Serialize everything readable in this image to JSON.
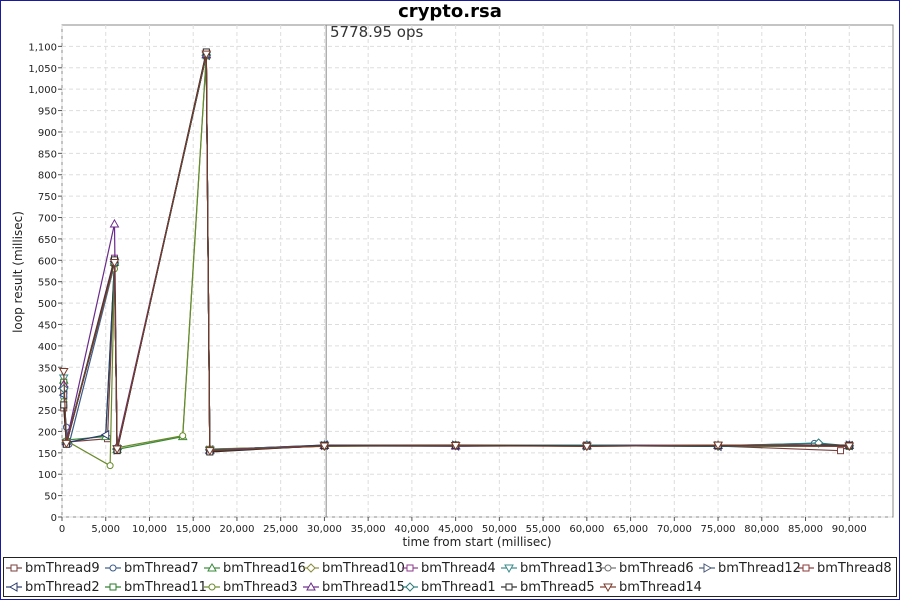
{
  "chart_data": {
    "type": "line",
    "title": "crypto.rsa",
    "annotation": "5778.95 ops",
    "xlabel": "time from start (millisec)",
    "ylabel": "loop result (millisec)",
    "xlim": [
      0,
      95000
    ],
    "ylim": [
      0,
      1150
    ],
    "x_ticks": [
      "0",
      "5,000",
      "10,000",
      "15,000",
      "20,000",
      "25,000",
      "30,000",
      "35,000",
      "40,000",
      "45,000",
      "50,000",
      "55,000",
      "60,000",
      "65,000",
      "70,000",
      "75,000",
      "80,000",
      "85,000",
      "90,000"
    ],
    "x_tick_values": [
      0,
      5000,
      10000,
      15000,
      20000,
      25000,
      30000,
      35000,
      40000,
      45000,
      50000,
      55000,
      60000,
      65000,
      70000,
      75000,
      80000,
      85000,
      90000
    ],
    "y_ticks": [
      "0",
      "50",
      "100",
      "150",
      "200",
      "250",
      "300",
      "350",
      "400",
      "450",
      "500",
      "550",
      "600",
      "650",
      "700",
      "750",
      "800",
      "850",
      "900",
      "950",
      "1,000",
      "1,050",
      "1,100"
    ],
    "y_tick_values": [
      0,
      50,
      100,
      150,
      200,
      250,
      300,
      350,
      400,
      450,
      500,
      550,
      600,
      650,
      700,
      750,
      800,
      850,
      900,
      950,
      1000,
      1050,
      1100
    ],
    "vertical_marker_x": 30200,
    "grid": true,
    "legend_position": "bottom",
    "series": [
      {
        "name": "bmThread9",
        "marker": "square",
        "color": "#7a4040",
        "points": [
          [
            200,
            255
          ],
          [
            500,
            175
          ],
          [
            5200,
            183
          ],
          [
            6000,
            600
          ],
          [
            6300,
            155
          ],
          [
            16500,
            1085
          ],
          [
            16900,
            155
          ],
          [
            30000,
            166
          ],
          [
            45000,
            168
          ],
          [
            60000,
            167
          ],
          [
            75000,
            166
          ],
          [
            89000,
            155
          ],
          [
            90000,
            166
          ]
        ]
      },
      {
        "name": "bmThread7",
        "marker": "circle",
        "color": "#3a5a8a",
        "points": [
          [
            200,
            280
          ],
          [
            500,
            210
          ],
          [
            800,
            170
          ],
          [
            6000,
            590
          ],
          [
            6300,
            160
          ],
          [
            16500,
            1080
          ],
          [
            16900,
            155
          ],
          [
            30000,
            167
          ],
          [
            45000,
            166
          ],
          [
            60000,
            168
          ],
          [
            75000,
            167
          ],
          [
            86000,
            172
          ],
          [
            90000,
            166
          ]
        ]
      },
      {
        "name": "bmThread16",
        "marker": "triangle-up",
        "color": "#3a8a3a",
        "points": [
          [
            200,
            320
          ],
          [
            500,
            180
          ],
          [
            5000,
            188
          ],
          [
            6000,
            595
          ],
          [
            6300,
            158
          ],
          [
            13800,
            188
          ],
          [
            16500,
            1080
          ],
          [
            16900,
            155
          ],
          [
            30000,
            168
          ],
          [
            45000,
            167
          ],
          [
            60000,
            166
          ],
          [
            75000,
            168
          ],
          [
            90000,
            167
          ]
        ]
      },
      {
        "name": "bmThread10",
        "marker": "diamond",
        "color": "#8a8a3a",
        "points": [
          [
            200,
            300
          ],
          [
            500,
            175
          ],
          [
            6000,
            590
          ],
          [
            6300,
            160
          ],
          [
            16500,
            1078
          ],
          [
            16900,
            158
          ],
          [
            30000,
            166
          ],
          [
            45000,
            168
          ],
          [
            60000,
            167
          ],
          [
            75000,
            165
          ],
          [
            90000,
            166
          ]
        ]
      },
      {
        "name": "bmThread4",
        "marker": "square",
        "color": "#8a3a8a",
        "points": [
          [
            200,
            310
          ],
          [
            500,
            172
          ],
          [
            6000,
            605
          ],
          [
            6300,
            158
          ],
          [
            16500,
            1082
          ],
          [
            16900,
            156
          ],
          [
            30000,
            167
          ],
          [
            45000,
            166
          ],
          [
            60000,
            168
          ],
          [
            75000,
            166
          ],
          [
            90000,
            167
          ]
        ]
      },
      {
        "name": "bmThread13",
        "marker": "triangle-down",
        "color": "#3a8a8a",
        "points": [
          [
            200,
            325
          ],
          [
            500,
            174
          ],
          [
            6000,
            598
          ],
          [
            6300,
            160
          ],
          [
            16500,
            1079
          ],
          [
            16900,
            157
          ],
          [
            30000,
            168
          ],
          [
            45000,
            167
          ],
          [
            60000,
            166
          ],
          [
            75000,
            167
          ],
          [
            90000,
            166
          ]
        ]
      },
      {
        "name": "bmThread6",
        "marker": "circle",
        "color": "#707070",
        "points": [
          [
            200,
            290
          ],
          [
            500,
            176
          ],
          [
            6000,
            592
          ],
          [
            6300,
            159
          ],
          [
            16500,
            1081
          ],
          [
            16900,
            158
          ],
          [
            30000,
            166
          ],
          [
            45000,
            165
          ],
          [
            60000,
            167
          ],
          [
            75000,
            168
          ],
          [
            90000,
            167
          ]
        ]
      },
      {
        "name": "bmThread12",
        "marker": "triangle-right",
        "color": "#4a5a7a",
        "points": [
          [
            200,
            305
          ],
          [
            500,
            173
          ],
          [
            6000,
            596
          ],
          [
            6300,
            157
          ],
          [
            16500,
            1080
          ],
          [
            16900,
            156
          ],
          [
            30000,
            167
          ],
          [
            45000,
            168
          ],
          [
            60000,
            166
          ],
          [
            75000,
            167
          ],
          [
            90000,
            168
          ]
        ]
      },
      {
        "name": "bmThread8",
        "marker": "square",
        "color": "#8a3a3a",
        "points": [
          [
            200,
            295
          ],
          [
            500,
            171
          ],
          [
            6000,
            594
          ],
          [
            6300,
            158
          ],
          [
            16500,
            1083
          ],
          [
            16900,
            154
          ],
          [
            30000,
            166
          ],
          [
            45000,
            167
          ],
          [
            60000,
            168
          ],
          [
            75000,
            166
          ],
          [
            90000,
            165
          ]
        ]
      },
      {
        "name": "bmThread2",
        "marker": "triangle-left",
        "color": "#2a3a6a",
        "points": [
          [
            200,
            285
          ],
          [
            500,
            174
          ],
          [
            5000,
            192
          ],
          [
            6000,
            597
          ],
          [
            6300,
            159
          ],
          [
            16500,
            1079
          ],
          [
            16900,
            157
          ],
          [
            30000,
            168
          ],
          [
            45000,
            166
          ],
          [
            60000,
            167
          ],
          [
            75000,
            165
          ],
          [
            90000,
            167
          ]
        ]
      },
      {
        "name": "bmThread11",
        "marker": "square",
        "color": "#2a7a2a",
        "points": [
          [
            200,
            315
          ],
          [
            500,
            175
          ],
          [
            6000,
            599
          ],
          [
            6300,
            160
          ],
          [
            16500,
            1080
          ],
          [
            16900,
            158
          ],
          [
            30000,
            167
          ],
          [
            45000,
            167
          ],
          [
            60000,
            166
          ],
          [
            75000,
            168
          ],
          [
            90000,
            166
          ]
        ]
      },
      {
        "name": "bmThread3",
        "marker": "circle",
        "color": "#6a8a2a",
        "points": [
          [
            200,
            270
          ],
          [
            500,
            178
          ],
          [
            5500,
            120
          ],
          [
            6000,
            580
          ],
          [
            6300,
            162
          ],
          [
            13800,
            190
          ],
          [
            16500,
            1078
          ],
          [
            16900,
            159
          ],
          [
            30000,
            165
          ],
          [
            45000,
            168
          ],
          [
            60000,
            167
          ],
          [
            75000,
            166
          ],
          [
            90000,
            167
          ]
        ]
      },
      {
        "name": "bmThread15",
        "marker": "triangle-up",
        "color": "#6a2a8a",
        "points": [
          [
            200,
            310
          ],
          [
            500,
            176
          ],
          [
            6000,
            685
          ],
          [
            6300,
            165
          ],
          [
            16500,
            1081
          ],
          [
            16900,
            157
          ],
          [
            30000,
            167
          ],
          [
            45000,
            166
          ],
          [
            60000,
            168
          ],
          [
            75000,
            167
          ],
          [
            90000,
            168
          ]
        ]
      },
      {
        "name": "bmThread1",
        "marker": "diamond",
        "color": "#2a7a7a",
        "points": [
          [
            200,
            300
          ],
          [
            500,
            173
          ],
          [
            6000,
            593
          ],
          [
            6300,
            158
          ],
          [
            16500,
            1080
          ],
          [
            16900,
            156
          ],
          [
            30000,
            166
          ],
          [
            45000,
            167
          ],
          [
            60000,
            168
          ],
          [
            75000,
            166
          ],
          [
            86500,
            173
          ],
          [
            90000,
            166
          ]
        ]
      },
      {
        "name": "bmThread5",
        "marker": "square",
        "color": "#2a2a2a",
        "points": [
          [
            200,
            262
          ],
          [
            500,
            170
          ],
          [
            6000,
            601
          ],
          [
            6300,
            156
          ],
          [
            16500,
            1087
          ],
          [
            16900,
            152
          ],
          [
            30000,
            167
          ],
          [
            45000,
            168
          ],
          [
            60000,
            166
          ],
          [
            75000,
            167
          ],
          [
            90000,
            168
          ]
        ]
      },
      {
        "name": "bmThread14",
        "marker": "triangle-down",
        "color": "#7a3a2a",
        "points": [
          [
            200,
            340
          ],
          [
            500,
            172
          ],
          [
            6000,
            595
          ],
          [
            6300,
            159
          ],
          [
            16500,
            1082
          ],
          [
            16900,
            155
          ],
          [
            30000,
            166
          ],
          [
            45000,
            167
          ],
          [
            60000,
            165
          ],
          [
            75000,
            168
          ],
          [
            90000,
            166
          ]
        ]
      }
    ]
  }
}
